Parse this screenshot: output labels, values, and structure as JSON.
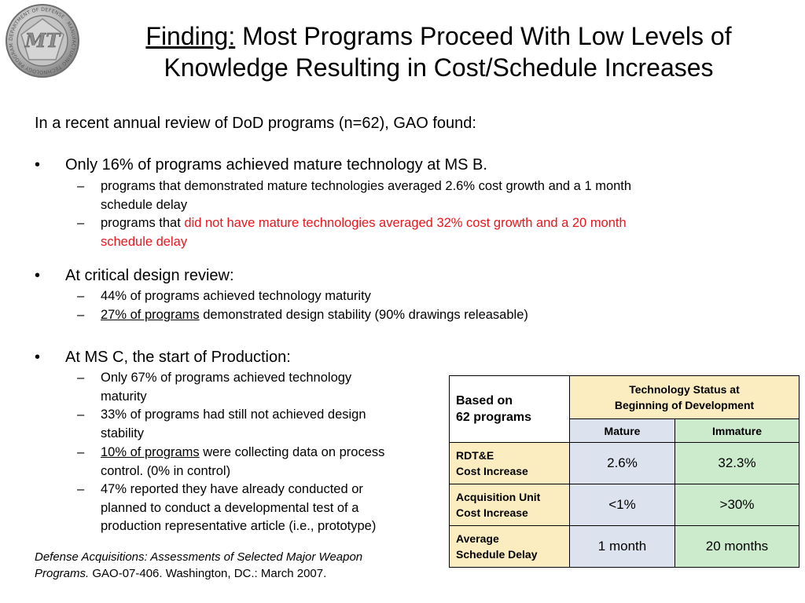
{
  "header": {
    "title_underlined": "Finding:",
    "title_rest": " Most Programs Proceed With Low Levels of",
    "title_line2": "Knowledge Resulting in Cost/Schedule Increases"
  },
  "logo": {
    "ring_text": "DEPARTMENT OF DEFENSE · MANUFACTURING TECHNOLOGY PROGRAM",
    "monogram": "MT"
  },
  "body": {
    "intro": "In a recent annual review of DoD programs (n=62), GAO found:",
    "bullet_glyph": "•",
    "dash_glyph": "–",
    "bullets": [
      {
        "text": "Only 16% of programs achieved mature technology at MS B.",
        "subs": [
          {
            "lines": [
              "programs that demonstrated mature technologies averaged 2.6% cost growth and a 1 month",
              "schedule delay"
            ]
          },
          {
            "prefix": "programs that ",
            "red_line1": "did not have mature technologies averaged 32% cost growth and a 20 month",
            "red_line2": "schedule delay"
          }
        ]
      },
      {
        "text": "At critical design review:",
        "subs": [
          {
            "lines": [
              "44% of programs achieved technology maturity"
            ]
          },
          {
            "underlined": "27% of programs",
            "rest": " demonstrated design stability (90% drawings releasable)"
          }
        ]
      },
      {
        "text": "At MS C, the start of Production:",
        "subs": [
          {
            "lines": [
              "Only 67% of programs achieved technology",
              "maturity"
            ]
          },
          {
            "lines": [
              "33% of programs had still not achieved design",
              "stability"
            ]
          },
          {
            "underlined": "10% of programs",
            "rest": " were collecting data on process",
            "line2": "control. (0% in control)"
          },
          {
            "lines": [
              "47% reported they have already conducted or",
              "planned to conduct a developmental test of a",
              "production representative article (i.e., prototype)"
            ]
          }
        ]
      }
    ]
  },
  "citation": {
    "italic_line1": "Defense Acquisitions: Assessments of Selected Major Weapon",
    "italic_line2": "Programs.",
    "rest": "  GAO-07-406. Washington, DC.: March 2007."
  },
  "table": {
    "base_line1": "Based on",
    "base_line2": "62 programs",
    "group_line1": "Technology Status at",
    "group_line2": "Beginning of Development",
    "col_mature": "Mature",
    "col_immature": "Immature",
    "rows": [
      {
        "label1": "RDT&E",
        "label2": "Cost Increase",
        "mature": "2.6%",
        "immature": "32.3%"
      },
      {
        "label1": "Acquisition Unit",
        "label2": "Cost Increase",
        "mature": "<1%",
        "immature": ">30%"
      },
      {
        "label1": "Average",
        "label2": "Schedule Delay",
        "mature": "1 month",
        "immature": "20 months"
      }
    ]
  },
  "colors": {
    "emphasis_red": "#e8161d",
    "header_tan": "#fcedc0",
    "mature_blue": "#dde3ee",
    "immature_green": "#ccebcd"
  }
}
